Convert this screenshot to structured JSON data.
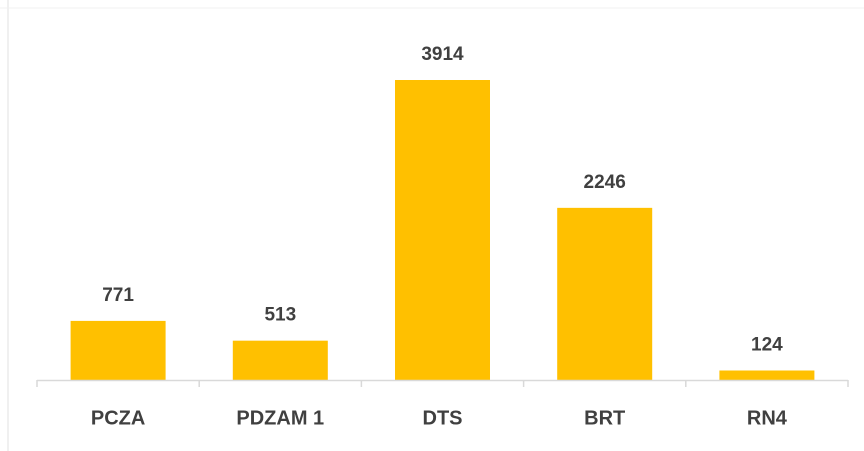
{
  "chart_data": {
    "type": "bar",
    "categories": [
      "PCZA",
      "PDZAM 1",
      "DTS",
      "BRT",
      "RN4"
    ],
    "values": [
      771,
      513,
      3914,
      2246,
      124
    ],
    "color": "#ffc000"
  }
}
